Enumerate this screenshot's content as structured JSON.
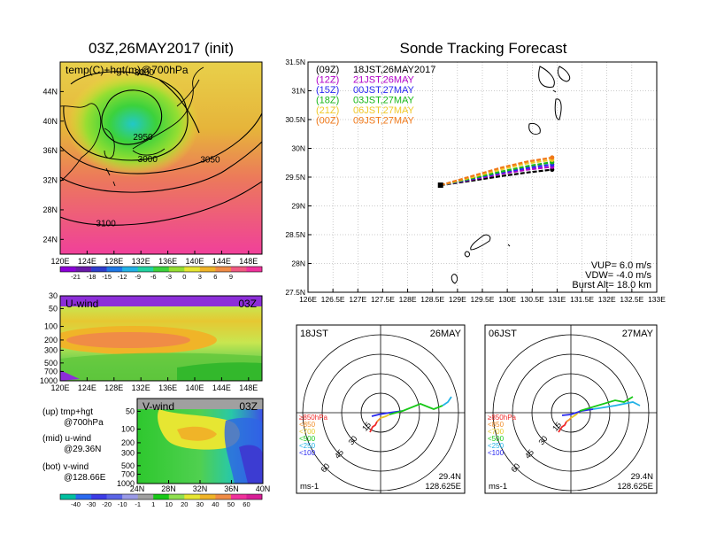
{
  "title_map": "03Z,26MAY2017 (init)",
  "title_track": "Sonde Tracking Forecast",
  "map_panel": {
    "label": "temp(C)+hgt(m)@700hPa",
    "xticks": [
      "120E",
      "124E",
      "128E",
      "132E",
      "136E",
      "140E",
      "144E",
      "148E"
    ],
    "yticks": [
      "44N",
      "40N",
      "36N",
      "32N",
      "28N",
      "24N"
    ],
    "contours": [
      {
        "text": "3000",
        "lon": 132.5,
        "lat": 46.3
      },
      {
        "text": "2950",
        "lon": 132.3,
        "lat": 37.6
      },
      {
        "text": "3000",
        "lon": 133.0,
        "lat": 34.6
      },
      {
        "text": "3050",
        "lon": 142.3,
        "lat": 34.5
      },
      {
        "text": "3100",
        "lon": 126.8,
        "lat": 25.9
      }
    ]
  },
  "temp_colorbar": {
    "labels": [
      "-21",
      "-18",
      "-15",
      "-12",
      "-9",
      "-6",
      "-3",
      "0",
      "3",
      "6",
      "9"
    ],
    "colors": [
      "#8c00d8",
      "#6a1aa8",
      "#2e3ccc",
      "#1e78e6",
      "#22b2e6",
      "#22d2a0",
      "#3cd23c",
      "#96de32",
      "#e6e632",
      "#f0b428",
      "#f08c46",
      "#f05a82",
      "#f0329c"
    ]
  },
  "u_panel": {
    "label": "U-wind",
    "time": "03Z",
    "yticks": [
      "30",
      "50",
      "100",
      "200",
      "300",
      "500",
      "700",
      "1000"
    ],
    "xticks": [
      "120E",
      "124E",
      "128E",
      "132E",
      "136E",
      "140E",
      "144E",
      "148E"
    ]
  },
  "v_panel": {
    "label": "V-wind",
    "time": "03Z",
    "yticks": [
      "50",
      "100",
      "200",
      "300",
      "500",
      "700",
      "1000"
    ],
    "xticks": [
      "24N",
      "28N",
      "32N",
      "36N",
      "40N"
    ]
  },
  "side_labels": [
    {
      "key": "(up) tmp+hgt",
      "sub": "@700hPa"
    },
    {
      "key": "(mid) u-wind",
      "sub": "@29.36N"
    },
    {
      "key": "(bot) v-wind",
      "sub": "@128.66E"
    }
  ],
  "wind_colorbar": {
    "labels": [
      "-40",
      "-30",
      "-20",
      "-10",
      "-1",
      "1",
      "10",
      "20",
      "30",
      "40",
      "50",
      "60"
    ],
    "colors": [
      "#00c0a0",
      "#2a6af0",
      "#3c3ce6",
      "#5a64e6",
      "#9a9ae6",
      "#a0a0a0",
      "#18c818",
      "#90e050",
      "#e6e632",
      "#f0b428",
      "#f08c46",
      "#f0329c",
      "#d81e96"
    ]
  },
  "legend": [
    {
      "code": "(09Z)",
      "text": "18JST,26MAY2017",
      "color": "#000000"
    },
    {
      "code": "(12Z)",
      "text": "21JST,26MAY",
      "color": "#b000c8"
    },
    {
      "code": "(15Z)",
      "text": "00JST,27MAY",
      "color": "#2828f0"
    },
    {
      "code": "(18Z)",
      "text": "03JST,27MAY",
      "color": "#18b818"
    },
    {
      "code": "(21Z)",
      "text": "06JST,27MAY",
      "color": "#f0c828"
    },
    {
      "code": "(00Z)",
      "text": "09JST,27MAY",
      "color": "#f07818"
    }
  ],
  "track_info": {
    "vup": "VUP=  6.0 m/s",
    "vdw": "VDW= -4.0 m/s",
    "burst": "Burst Alt= 18.0 km"
  },
  "hodo_left": {
    "time": "18JST",
    "date": "26MAY",
    "lat": "29.4N",
    "lon": "128.625E",
    "unit": "ms-1",
    "rings": [
      "15",
      "30",
      "45",
      "60"
    ]
  },
  "hodo_right": {
    "time": "06JST",
    "date": "27MAY",
    "lat": "29.4N",
    "lon": "128.625E",
    "unit": "ms-1",
    "rings": [
      "15",
      "30",
      "45",
      "60"
    ]
  },
  "hodo_pressure_legend": [
    {
      "text": "≥850hPa",
      "color": "#f02828"
    },
    {
      "text": "<850",
      "color": "#f08c28"
    },
    {
      "text": "<700",
      "color": "#e6c828"
    },
    {
      "text": "<500",
      "color": "#18c818"
    },
    {
      "text": "<250",
      "color": "#22b2e6"
    },
    {
      "text": "<100",
      "color": "#2828f0"
    }
  ],
  "chart_data": {
    "type": "line",
    "title": "Sonde Tracking Forecast",
    "xlabel": "",
    "ylabel": "",
    "xlim": [
      126,
      133
    ],
    "ylim": [
      27.5,
      31.5
    ],
    "xticks": [
      "126E",
      "126.5E",
      "127E",
      "127.5E",
      "128E",
      "128.5E",
      "129E",
      "129.5E",
      "130E",
      "130.5E",
      "131E",
      "131.5E",
      "132E",
      "132.5E",
      "133E"
    ],
    "yticks": [
      "27.5N",
      "28N",
      "28.5N",
      "29N",
      "29.5N",
      "30N",
      "30.5N",
      "31N",
      "31.5N"
    ],
    "series": [
      {
        "name": "(09Z) 18JST,26MAY2017",
        "color": "#000000",
        "x": [
          128.66,
          129.3,
          129.9,
          130.4,
          130.9
        ],
        "y": [
          29.36,
          29.44,
          29.52,
          29.58,
          29.63
        ]
      },
      {
        "name": "(12Z) 21JST,26MAY",
        "color": "#b000c8",
        "x": [
          128.66,
          129.3,
          129.9,
          130.4,
          130.9
        ],
        "y": [
          29.36,
          29.46,
          29.56,
          29.63,
          29.68
        ]
      },
      {
        "name": "(15Z) 00JST,27MAY",
        "color": "#2828f0",
        "x": [
          128.66,
          129.3,
          129.9,
          130.4,
          130.9
        ],
        "y": [
          29.36,
          29.47,
          29.58,
          29.66,
          29.72
        ]
      },
      {
        "name": "(18Z) 03JST,27MAY",
        "color": "#18b818",
        "x": [
          128.66,
          129.3,
          129.9,
          130.4,
          130.9
        ],
        "y": [
          29.36,
          29.48,
          29.6,
          29.69,
          29.76
        ]
      },
      {
        "name": "(21Z) 06JST,27MAY",
        "color": "#f0c828",
        "x": [
          128.66,
          129.3,
          129.9,
          130.4,
          130.9
        ],
        "y": [
          29.36,
          29.5,
          29.64,
          29.74,
          29.8
        ]
      },
      {
        "name": "(00Z) 09JST,27MAY",
        "color": "#f07818",
        "x": [
          128.66,
          129.3,
          129.9,
          130.4,
          130.9
        ],
        "y": [
          29.36,
          29.52,
          29.67,
          29.77,
          29.84
        ]
      }
    ]
  }
}
